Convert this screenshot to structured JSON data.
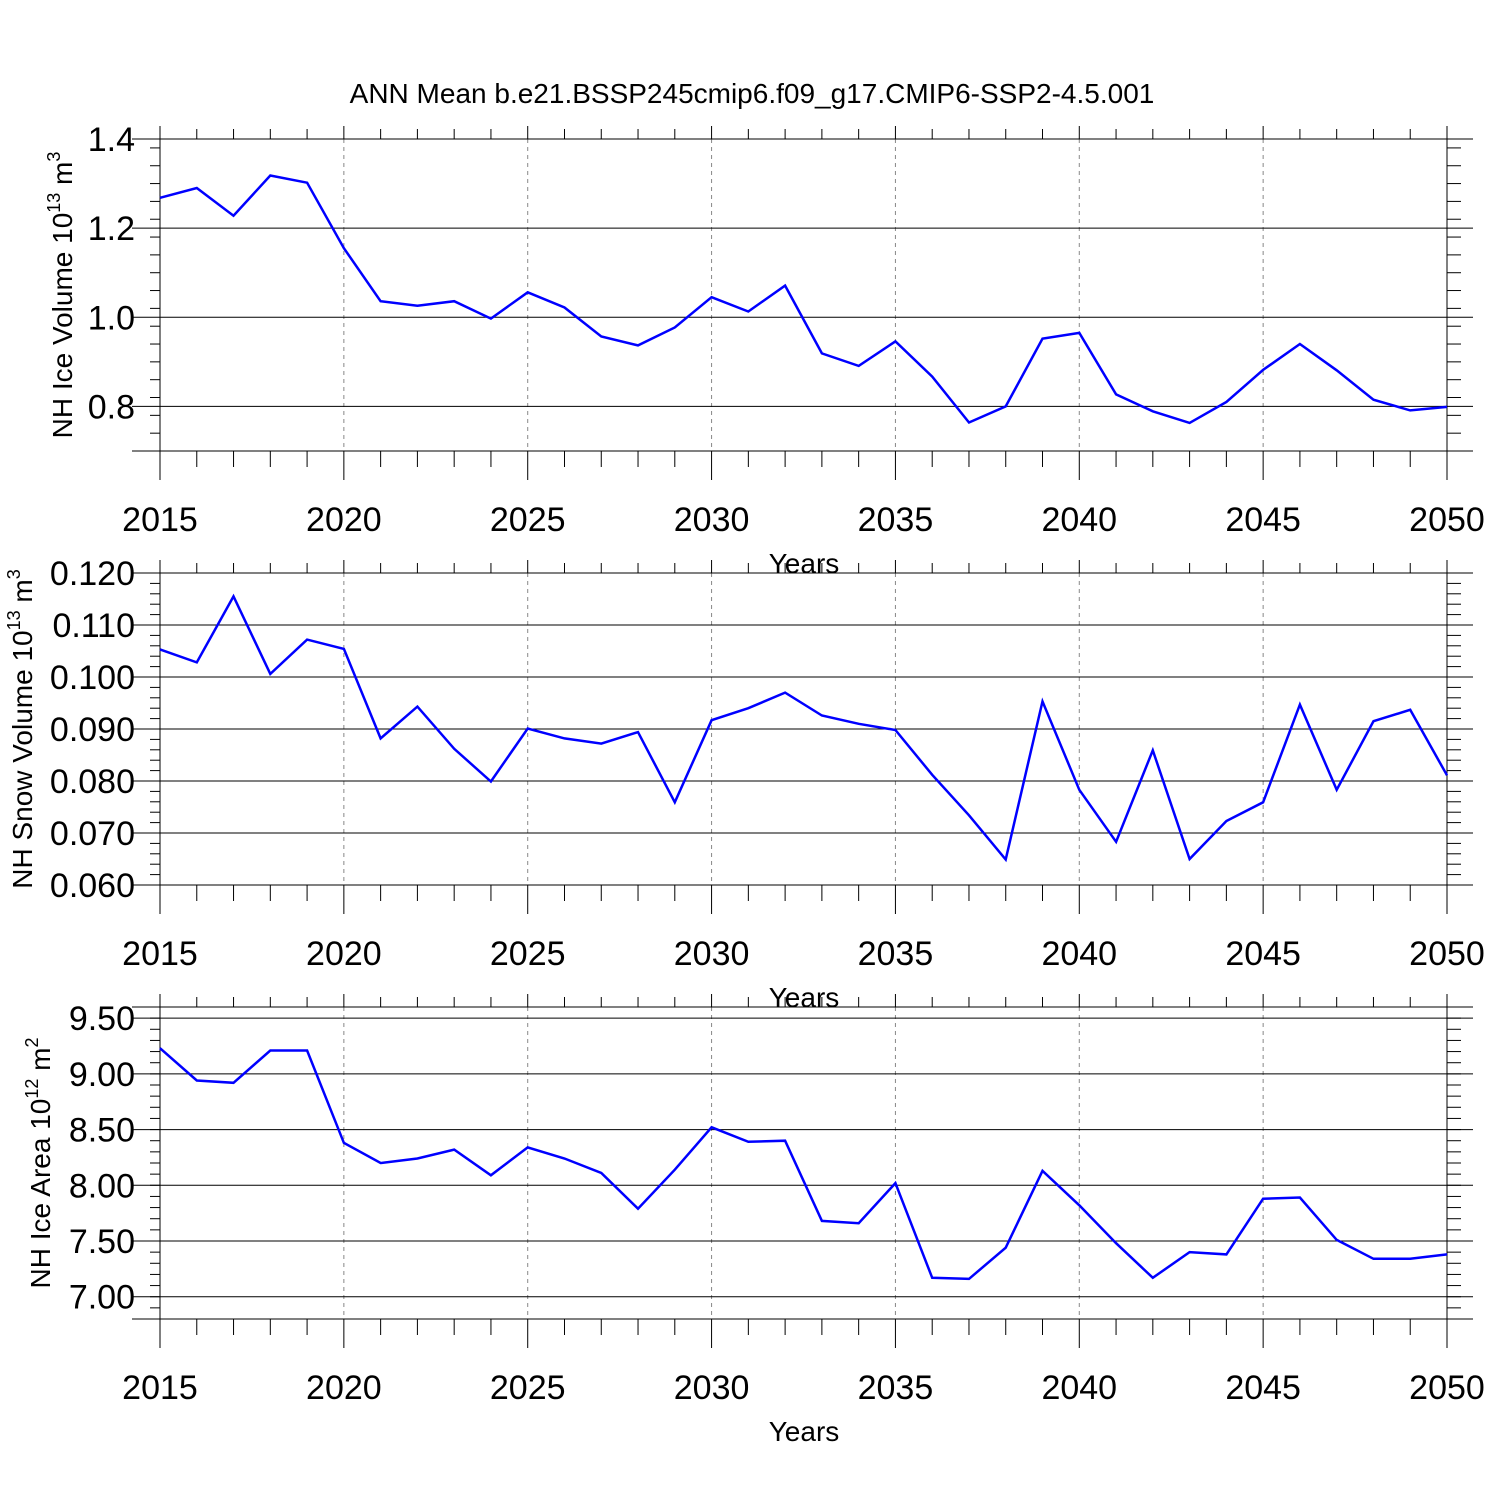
{
  "title": "ANN Mean b.e21.BSSP245cmip6.f09_g17.CMIP6-SSP2-4.5.001",
  "line_color": "#0000ff",
  "chart_data": [
    {
      "type": "line",
      "ylabel": "NH Ice Volume 10",
      "ylabel_exp": "13",
      "ylabel_unit": "m",
      "ylabel_unit_exp": "3",
      "xlabel": "Years",
      "xlim": [
        2015,
        2050
      ],
      "ylim": [
        0.7,
        1.4
      ],
      "x_ticks": [
        "2015",
        "2020",
        "2025",
        "2030",
        "2035",
        "2040",
        "2045",
        "2050"
      ],
      "y_ticks": [
        {
          "v": 0.8,
          "label": "0.8"
        },
        {
          "v": 1.0,
          "label": "1.0"
        },
        {
          "v": 1.2,
          "label": "1.2"
        },
        {
          "v": 1.4,
          "label": "1.4"
        }
      ],
      "x": [
        2015,
        2016,
        2017,
        2018,
        2019,
        2020,
        2021,
        2022,
        2023,
        2024,
        2025,
        2026,
        2027,
        2028,
        2029,
        2030,
        2031,
        2032,
        2033,
        2034,
        2035,
        2036,
        2037,
        2038,
        2039,
        2040,
        2041,
        2042,
        2043,
        2044,
        2045,
        2046,
        2047,
        2048,
        2049,
        2050
      ],
      "values": [
        1.268,
        1.29,
        1.228,
        1.318,
        1.302,
        1.155,
        1.036,
        1.026,
        1.036,
        0.997,
        1.056,
        1.022,
        0.957,
        0.937,
        0.977,
        1.045,
        1.013,
        1.071,
        0.919,
        0.891,
        0.946,
        0.867,
        0.764,
        0.8,
        0.952,
        0.965,
        0.827,
        0.789,
        0.763,
        0.81,
        0.882,
        0.94,
        0.881,
        0.815,
        0.791,
        0.799
      ]
    },
    {
      "type": "line",
      "ylabel": "NH Snow Volume 10",
      "ylabel_exp": "13",
      "ylabel_unit": "m",
      "ylabel_unit_exp": "3",
      "xlabel": "Years",
      "xlim": [
        2015,
        2050
      ],
      "ylim": [
        0.06,
        0.12
      ],
      "x_ticks": [
        "2015",
        "2020",
        "2025",
        "2030",
        "2035",
        "2040",
        "2045",
        "2050"
      ],
      "y_ticks": [
        {
          "v": 0.06,
          "label": "0.060"
        },
        {
          "v": 0.07,
          "label": "0.070"
        },
        {
          "v": 0.08,
          "label": "0.080"
        },
        {
          "v": 0.09,
          "label": "0.090"
        },
        {
          "v": 0.1,
          "label": "0.100"
        },
        {
          "v": 0.11,
          "label": "0.110"
        },
        {
          "v": 0.12,
          "label": "0.120"
        }
      ],
      "x": [
        2015,
        2016,
        2017,
        2018,
        2019,
        2020,
        2021,
        2022,
        2023,
        2024,
        2025,
        2026,
        2027,
        2028,
        2029,
        2030,
        2031,
        2032,
        2033,
        2034,
        2035,
        2036,
        2037,
        2038,
        2039,
        2040,
        2041,
        2042,
        2043,
        2044,
        2045,
        2046,
        2047,
        2048,
        2049,
        2050
      ],
      "values": [
        0.1053,
        0.1028,
        0.1155,
        0.1006,
        0.1072,
        0.1054,
        0.0882,
        0.0943,
        0.0862,
        0.0799,
        0.0901,
        0.0882,
        0.0872,
        0.0894,
        0.0759,
        0.0917,
        0.094,
        0.097,
        0.0926,
        0.091,
        0.0898,
        0.0812,
        0.0734,
        0.0649,
        0.0953,
        0.0783,
        0.0683,
        0.0859,
        0.065,
        0.0723,
        0.0759,
        0.0947,
        0.0783,
        0.0915,
        0.0937,
        0.0811
      ]
    },
    {
      "type": "line",
      "ylabel": "NH Ice Area 10",
      "ylabel_exp": "12",
      "ylabel_unit": "m",
      "ylabel_unit_exp": "2",
      "xlabel": "Years",
      "xlim": [
        2015,
        2050
      ],
      "ylim": [
        6.8,
        9.6
      ],
      "x_ticks": [
        "2015",
        "2020",
        "2025",
        "2030",
        "2035",
        "2040",
        "2045",
        "2050"
      ],
      "y_ticks": [
        {
          "v": 7.0,
          "label": "7.00"
        },
        {
          "v": 7.5,
          "label": "7.50"
        },
        {
          "v": 8.0,
          "label": "8.00"
        },
        {
          "v": 8.5,
          "label": "8.50"
        },
        {
          "v": 9.0,
          "label": "9.00"
        },
        {
          "v": 9.5,
          "label": "9.50"
        }
      ],
      "x": [
        2015,
        2016,
        2017,
        2018,
        2019,
        2020,
        2021,
        2022,
        2023,
        2024,
        2025,
        2026,
        2027,
        2028,
        2029,
        2030,
        2031,
        2032,
        2033,
        2034,
        2035,
        2036,
        2037,
        2038,
        2039,
        2040,
        2041,
        2042,
        2043,
        2044,
        2045,
        2046,
        2047,
        2048,
        2049,
        2050
      ],
      "values": [
        9.23,
        8.94,
        8.92,
        9.21,
        9.21,
        8.38,
        8.2,
        8.24,
        8.32,
        8.09,
        8.34,
        8.24,
        8.11,
        7.79,
        8.14,
        8.52,
        8.39,
        8.4,
        7.68,
        7.66,
        8.02,
        7.17,
        7.16,
        7.44,
        8.13,
        7.82,
        7.48,
        7.17,
        7.4,
        7.38,
        7.88,
        7.89,
        7.51,
        7.34,
        7.34,
        7.38
      ]
    }
  ]
}
